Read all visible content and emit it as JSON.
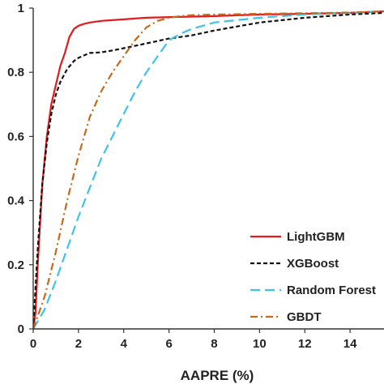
{
  "chart_data": {
    "type": "line",
    "title": "",
    "xlabel": "AAPRE (%)",
    "ylabel": "",
    "xlim": [
      0,
      15.5
    ],
    "ylim": [
      0,
      1
    ],
    "x_ticks": [
      "0",
      "2",
      "4",
      "6",
      "8",
      "10",
      "12",
      "14"
    ],
    "y_ticks": [
      "0",
      "0.2",
      "0.4",
      "0.6",
      "0.8",
      "1"
    ],
    "grid": false,
    "legend_position": "bottom-right",
    "series": [
      {
        "name": "LightGBM",
        "color": "#e41a1c",
        "dash": "solid",
        "x": [
          0,
          0.1,
          0.2,
          0.4,
          0.6,
          0.8,
          1.0,
          1.2,
          1.4,
          1.6,
          1.8,
          2.0,
          2.2,
          2.5,
          3,
          4,
          5,
          6,
          8,
          10,
          12,
          14,
          15.5
        ],
        "y": [
          0,
          0.05,
          0.2,
          0.45,
          0.6,
          0.7,
          0.76,
          0.82,
          0.86,
          0.91,
          0.935,
          0.945,
          0.95,
          0.955,
          0.96,
          0.965,
          0.97,
          0.972,
          0.975,
          0.98,
          0.982,
          0.985,
          0.99
        ]
      },
      {
        "name": "XGBoost",
        "color": "#111111",
        "dash": "dashed",
        "x": [
          0,
          0.2,
          0.4,
          0.6,
          0.8,
          1.0,
          1.2,
          1.5,
          1.8,
          2.0,
          2.5,
          3.0,
          3.5,
          4.0,
          5.0,
          6.0,
          7.0,
          8.0,
          10,
          12,
          14,
          15.5
        ],
        "y": [
          0,
          0.25,
          0.45,
          0.58,
          0.67,
          0.73,
          0.77,
          0.81,
          0.835,
          0.845,
          0.86,
          0.862,
          0.868,
          0.875,
          0.89,
          0.905,
          0.915,
          0.93,
          0.955,
          0.97,
          0.98,
          0.985
        ]
      },
      {
        "name": "Random Forest",
        "color": "#3ec3ea",
        "dash": "long-dash",
        "x": [
          0,
          0.5,
          1.0,
          1.5,
          2.0,
          2.5,
          3.0,
          3.5,
          4.0,
          4.5,
          5.0,
          5.5,
          6.0,
          6.5,
          7.0,
          8.0,
          10,
          12,
          14,
          15.5
        ],
        "y": [
          0,
          0.06,
          0.15,
          0.25,
          0.35,
          0.44,
          0.53,
          0.6,
          0.67,
          0.74,
          0.8,
          0.85,
          0.9,
          0.92,
          0.935,
          0.955,
          0.97,
          0.98,
          0.985,
          0.99
        ]
      },
      {
        "name": "GBDT",
        "color": "#c5691d",
        "dash": "dash-dot",
        "x": [
          0,
          0.5,
          1.0,
          1.5,
          2.0,
          2.5,
          3.0,
          3.5,
          4.0,
          4.5,
          5.0,
          5.5,
          6.0,
          6.5,
          7.0,
          8.0,
          10,
          12,
          14,
          15.5
        ],
        "y": [
          0,
          0.1,
          0.24,
          0.4,
          0.54,
          0.66,
          0.74,
          0.8,
          0.85,
          0.9,
          0.94,
          0.96,
          0.97,
          0.975,
          0.978,
          0.98,
          0.982,
          0.984,
          0.986,
          0.99
        ]
      }
    ]
  }
}
